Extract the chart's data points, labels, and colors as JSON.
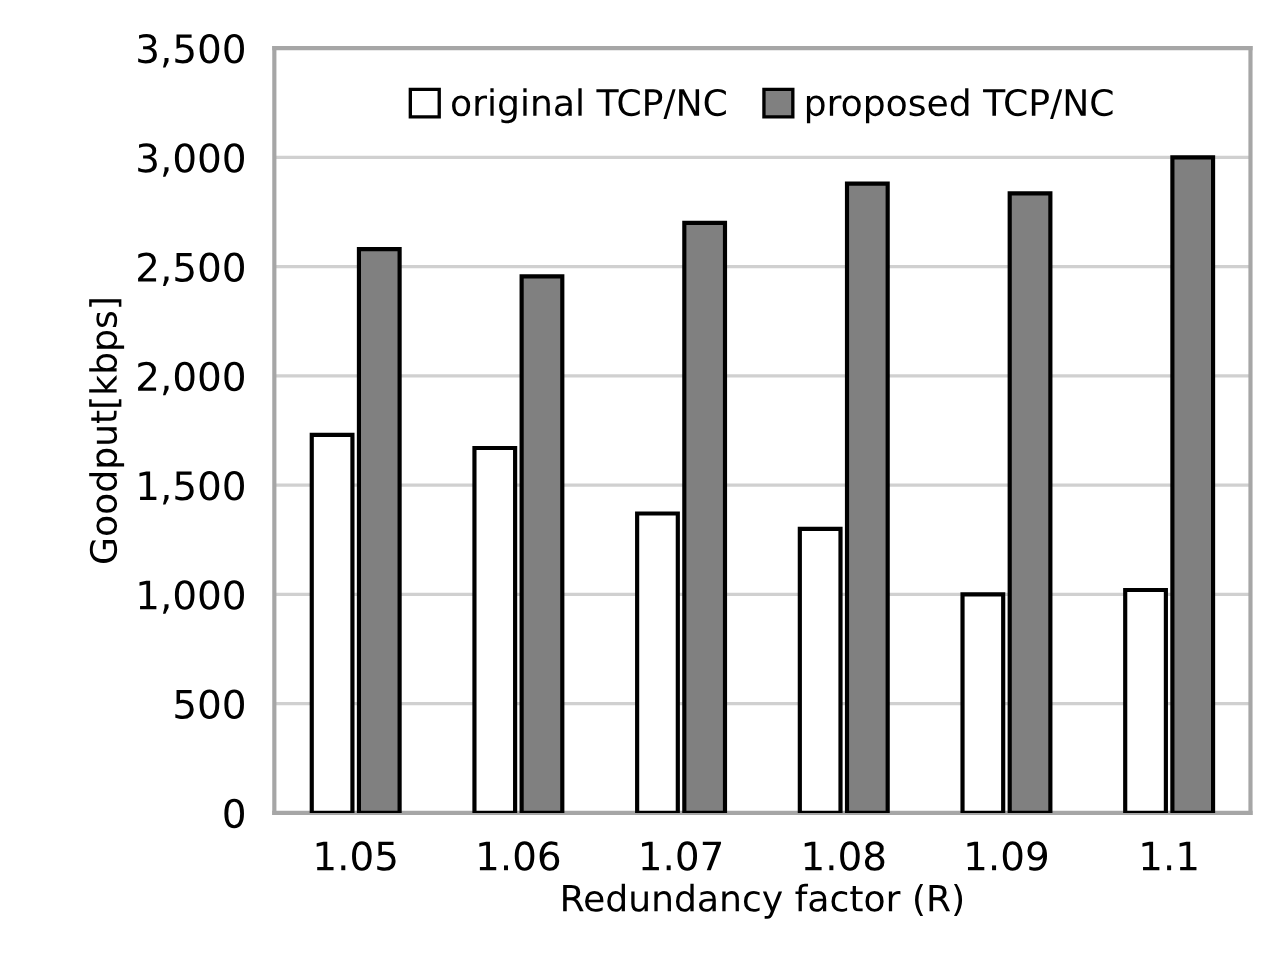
{
  "chart_data": {
    "type": "bar",
    "xlabel": "Redundancy factor (R)",
    "ylabel": "Goodput[kbps]",
    "categories": [
      "1.05",
      "1.06",
      "1.07",
      "1.08",
      "1.09",
      "1.1"
    ],
    "series": [
      {
        "name": "original TCP/NC",
        "color": "#ffffff",
        "values": [
          1730,
          1670,
          1370,
          1300,
          1000,
          1020
        ]
      },
      {
        "name": "proposed TCP/NC",
        "color": "#808080",
        "values": [
          2580,
          2455,
          2700,
          2880,
          2835,
          3000
        ]
      }
    ],
    "ylim": [
      0,
      3500
    ],
    "yticks": [
      {
        "value": 0,
        "label": "0"
      },
      {
        "value": 500,
        "label": "500"
      },
      {
        "value": 1000,
        "label": "1,000"
      },
      {
        "value": 1500,
        "label": "1,500"
      },
      {
        "value": 2000,
        "label": "2,000"
      },
      {
        "value": 2500,
        "label": "2,500"
      },
      {
        "value": 3000,
        "label": "3,000"
      },
      {
        "value": 3500,
        "label": "3,500"
      }
    ],
    "grid": "y",
    "legend": "top"
  }
}
